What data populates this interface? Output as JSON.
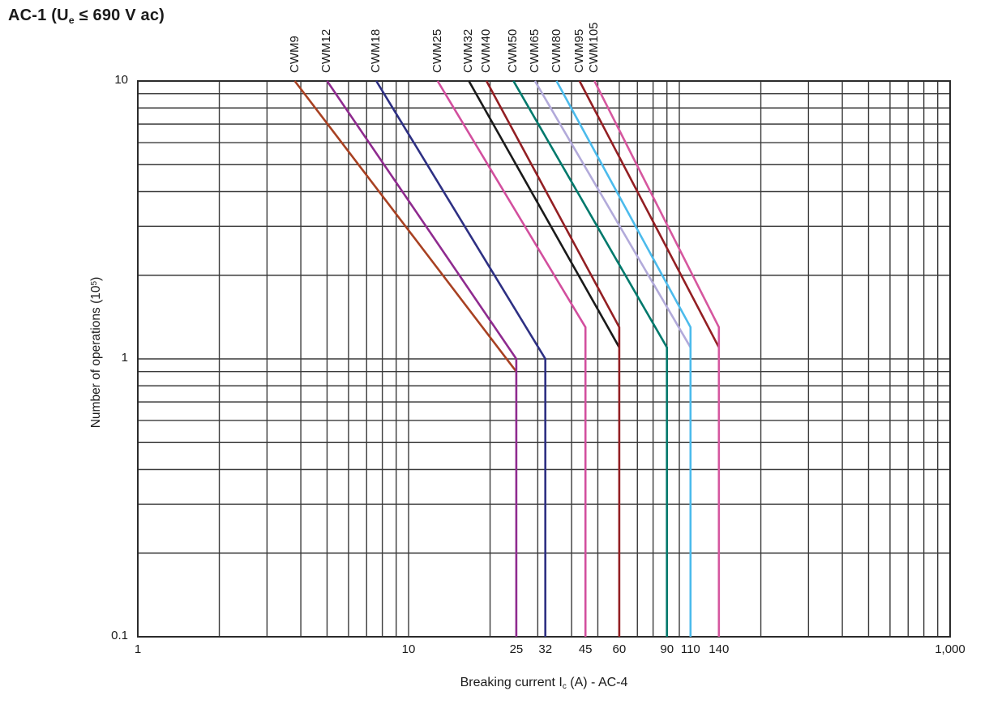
{
  "title": {
    "prefix": "AC-1 (U",
    "subscript": "e",
    "suffix": " ≤ 690 V ac)"
  },
  "x_axis_title": {
    "prefix": "Breaking current I",
    "subscript": "c",
    "suffix": " (A) - AC-4"
  },
  "y_axis_title": {
    "prefix": "Number of operations (10",
    "superscript": "5",
    "suffix": ")"
  },
  "colors": {
    "grid": "#3a3a3a",
    "border": "#2b2b2b",
    "text": "#1a1a1a",
    "background": "#ffffff"
  },
  "chart_data": {
    "type": "line",
    "title": "AC-1 (Ue ≤ 690 V ac)",
    "xlabel": "Breaking current Ic (A) - AC-4",
    "ylabel": "Number of operations (10^5)",
    "x_scale": "log",
    "y_scale": "log",
    "x_range": [
      1,
      1000
    ],
    "y_range": [
      0.1,
      10
    ],
    "grid": "full log grid, major and minor lines on both axes",
    "legend_position": "rotated labels above plot at each curve top",
    "x_ticks": [
      {
        "v": 1,
        "label": "1"
      },
      {
        "v": 10,
        "label": "10"
      },
      {
        "v": 25,
        "label": "25"
      },
      {
        "v": 32,
        "label": "32"
      },
      {
        "v": 45,
        "label": "45"
      },
      {
        "v": 60,
        "label": "60"
      },
      {
        "v": 90,
        "label": "90"
      },
      {
        "v": 110,
        "label": "110"
      },
      {
        "v": 140,
        "label": "140"
      },
      {
        "v": 1000,
        "label": "1,000"
      }
    ],
    "y_ticks": [
      {
        "v": 10,
        "label": "10"
      },
      {
        "v": 1,
        "label": "1"
      },
      {
        "v": 0.1,
        "label": "0.1"
      }
    ],
    "series": [
      {
        "name": "CWM9",
        "color": "#A84122",
        "points": [
          [
            3.8,
            10
          ],
          [
            25,
            0.9
          ]
        ]
      },
      {
        "name": "CWM12",
        "color": "#8F2B8F",
        "points": [
          [
            5,
            10
          ],
          [
            25,
            1.0
          ],
          [
            25,
            0.1
          ]
        ]
      },
      {
        "name": "CWM18",
        "color": "#2E3083",
        "points": [
          [
            7.6,
            10
          ],
          [
            32,
            1.0
          ],
          [
            32,
            0.1
          ]
        ]
      },
      {
        "name": "CWM25",
        "color": "#D24F9E",
        "points": [
          [
            12.8,
            10
          ],
          [
            45,
            1.3
          ],
          [
            45,
            0.1
          ]
        ]
      },
      {
        "name": "CWM32",
        "color": "#1A1A1A",
        "points": [
          [
            16.7,
            10
          ],
          [
            60,
            1.1
          ]
        ]
      },
      {
        "name": "CWM40",
        "color": "#931F23",
        "points": [
          [
            19.4,
            10
          ],
          [
            60,
            1.3
          ],
          [
            60,
            0.1
          ]
        ]
      },
      {
        "name": "CWM50",
        "color": "#00796C",
        "points": [
          [
            24.4,
            10
          ],
          [
            90,
            1.1
          ],
          [
            90,
            0.1
          ]
        ]
      },
      {
        "name": "CWM65",
        "color": "#B2AADA",
        "points": [
          [
            29.3,
            10
          ],
          [
            110,
            1.1
          ]
        ]
      },
      {
        "name": "CWM80",
        "color": "#4CBBEC",
        "points": [
          [
            35.2,
            10
          ],
          [
            110,
            1.3
          ],
          [
            110,
            0.1
          ]
        ]
      },
      {
        "name": "CWM95",
        "color": "#931F23",
        "points": [
          [
            42.8,
            10
          ],
          [
            140,
            1.1
          ]
        ]
      },
      {
        "name": "CWM105",
        "color": "#D6579F",
        "points": [
          [
            48.6,
            10
          ],
          [
            140,
            1.3
          ],
          [
            140,
            0.1
          ]
        ]
      }
    ]
  }
}
